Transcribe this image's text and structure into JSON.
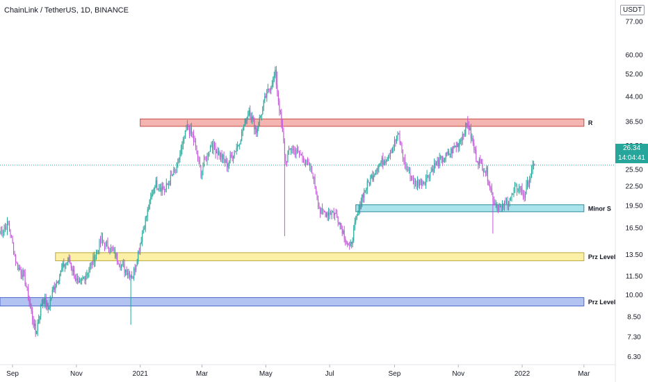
{
  "header": {
    "title": "ChainLink / TetherUS, 1D, BINANCE"
  },
  "price_axis": {
    "unit": "USDT",
    "current_price": "26.34",
    "countdown": "14:04:41"
  },
  "zones": [
    {
      "label": "R",
      "low": 35.2,
      "high": 37.2,
      "start": "2021-01-01",
      "end": "2022-03-01",
      "color": "#f4b4b0",
      "border": "#c94c46"
    },
    {
      "label": "Minor S",
      "low": 18.6,
      "high": 19.6,
      "start": "2021-07-26",
      "end": "2022-03-01",
      "color": "#a9e3ec",
      "border": "#2a8a9a"
    },
    {
      "label": "Prz Level",
      "low": 12.9,
      "high": 13.7,
      "start": "2020-10-12",
      "end": "2022-03-01",
      "color": "#fbf0a6",
      "border": "#b9a83a"
    },
    {
      "label": "Prz Level",
      "low": 9.2,
      "high": 9.8,
      "start": "2020-08-20",
      "end": "2022-03-01",
      "color": "#b2c3f2",
      "border": "#4b67c8"
    }
  ],
  "chart_data": {
    "type": "candlestick",
    "title": "ChainLink / TetherUS, 1D, BINANCE",
    "y_scale": "log",
    "ylim": [
      6.0,
      77.0
    ],
    "xlim": [
      "2020-08-20",
      "2022-03-31"
    ],
    "y_ticks": [
      "77.00",
      "60.00",
      "52.00",
      "44.00",
      "36.50",
      "30.50",
      "25.50",
      "22.50",
      "19.50",
      "16.50",
      "13.50",
      "11.50",
      "10.00",
      "8.50",
      "7.30",
      "6.30"
    ],
    "x_ticks": [
      {
        "date": "2020-09-01",
        "label": "Sep"
      },
      {
        "date": "2020-11-01",
        "label": "Nov"
      },
      {
        "date": "2021-01-01",
        "label": "2021"
      },
      {
        "date": "2021-03-01",
        "label": "Mar"
      },
      {
        "date": "2021-05-01",
        "label": "May"
      },
      {
        "date": "2021-07-01",
        "label": "Jul"
      },
      {
        "date": "2021-09-01",
        "label": "Sep"
      },
      {
        "date": "2021-11-01",
        "label": "Nov"
      },
      {
        "date": "2022-01-01",
        "label": "2022"
      },
      {
        "date": "2022-03-01",
        "label": "Mar"
      }
    ],
    "last_price": 26.34,
    "up_color": "#26a69a",
    "down_color": "#c057d6",
    "price_path": [
      [
        "2020-08-20",
        16.0
      ],
      [
        "2020-08-28",
        17.0
      ],
      [
        "2020-09-05",
        12.5
      ],
      [
        "2020-09-12",
        11.5
      ],
      [
        "2020-09-23",
        7.5
      ],
      [
        "2020-09-30",
        9.8
      ],
      [
        "2020-10-05",
        9.0
      ],
      [
        "2020-10-10",
        10.5
      ],
      [
        "2020-10-20",
        12.5
      ],
      [
        "2020-10-25",
        13.0
      ],
      [
        "2020-11-03",
        10.6
      ],
      [
        "2020-11-15",
        12.5
      ],
      [
        "2020-11-25",
        15.0
      ],
      [
        "2020-12-05",
        14.0
      ],
      [
        "2020-12-15",
        12.3
      ],
      [
        "2020-12-25",
        11.5
      ],
      [
        "2021-01-05",
        17.0
      ],
      [
        "2021-01-15",
        23.0
      ],
      [
        "2021-01-25",
        22.0
      ],
      [
        "2021-02-05",
        26.0
      ],
      [
        "2021-02-15",
        35.0
      ],
      [
        "2021-02-20",
        33.0
      ],
      [
        "2021-02-28",
        25.0
      ],
      [
        "2021-03-10",
        31.0
      ],
      [
        "2021-03-25",
        26.5
      ],
      [
        "2021-04-05",
        31.0
      ],
      [
        "2021-04-15",
        40.0
      ],
      [
        "2021-04-22",
        34.0
      ],
      [
        "2021-05-01",
        44.0
      ],
      [
        "2021-05-10",
        52.0
      ],
      [
        "2021-05-15",
        38.0
      ],
      [
        "2021-05-20",
        27.0
      ],
      [
        "2021-05-25",
        30.0
      ],
      [
        "2021-06-05",
        28.0
      ],
      [
        "2021-06-15",
        24.5
      ],
      [
        "2021-06-22",
        18.5
      ],
      [
        "2021-07-05",
        18.5
      ],
      [
        "2021-07-10",
        17.5
      ],
      [
        "2021-07-20",
        14.0
      ],
      [
        "2021-08-01",
        21.0
      ],
      [
        "2021-08-15",
        26.0
      ],
      [
        "2021-08-25",
        28.0
      ],
      [
        "2021-09-05",
        33.0
      ],
      [
        "2021-09-10",
        27.0
      ],
      [
        "2021-09-20",
        23.0
      ],
      [
        "2021-09-30",
        23.5
      ],
      [
        "2021-10-10",
        26.5
      ],
      [
        "2021-10-20",
        28.0
      ],
      [
        "2021-11-01",
        31.0
      ],
      [
        "2021-11-10",
        36.0
      ],
      [
        "2021-11-18",
        28.0
      ],
      [
        "2021-11-28",
        25.0
      ],
      [
        "2021-12-05",
        20.0
      ],
      [
        "2021-12-12",
        19.0
      ],
      [
        "2021-12-20",
        20.5
      ],
      [
        "2021-12-28",
        22.5
      ],
      [
        "2022-01-03",
        21.0
      ],
      [
        "2022-01-10",
        25.0
      ],
      [
        "2022-01-13",
        26.34
      ]
    ],
    "extreme_wicks": [
      {
        "date": "2020-09-23",
        "low": 7.3
      },
      {
        "date": "2020-12-23",
        "low": 8.0
      },
      {
        "date": "2021-05-12",
        "high": 53.0
      },
      {
        "date": "2021-05-19",
        "low": 15.5
      },
      {
        "date": "2021-07-20",
        "low": 14.0
      },
      {
        "date": "2021-11-10",
        "high": 38.0
      },
      {
        "date": "2021-12-04",
        "low": 15.8
      }
    ]
  }
}
